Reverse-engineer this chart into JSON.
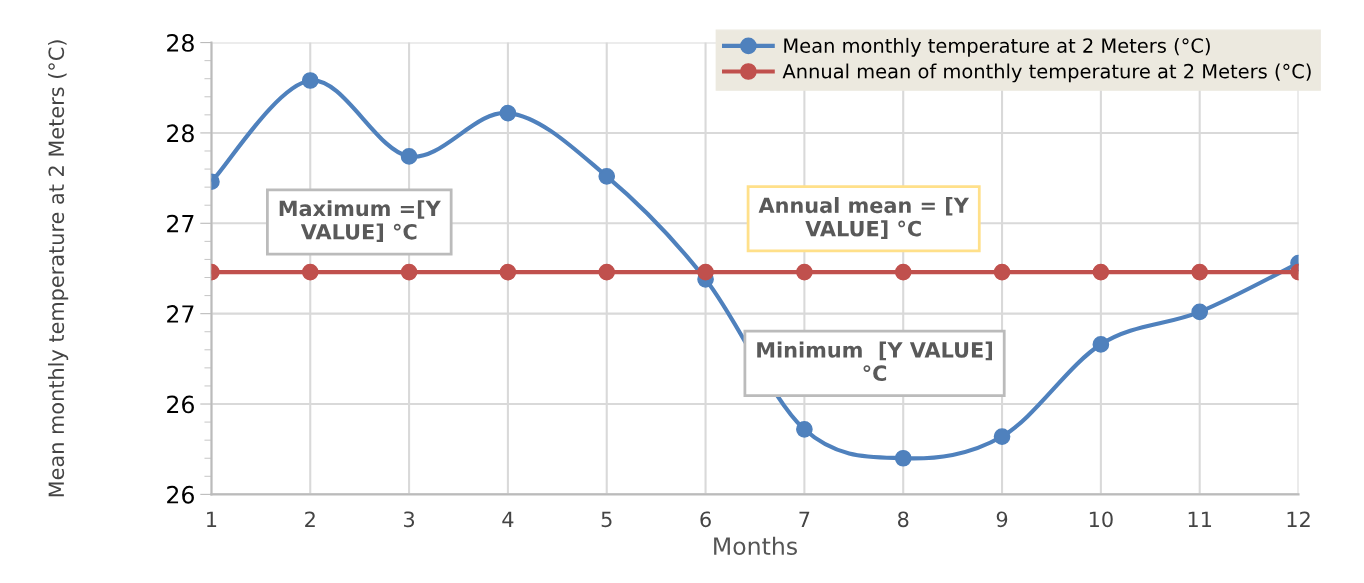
{
  "chart_data": {
    "type": "line",
    "xlabel": "Months",
    "ylabel": "Mean monthly temperature at 2 Meters (°C)",
    "x": [
      1,
      2,
      3,
      4,
      5,
      6,
      7,
      8,
      9,
      10,
      11,
      12
    ],
    "series": [
      {
        "name": "Mean monthly temperature at 2 Meters (°C)",
        "color": "#4f81bd",
        "values": [
          27.73,
          28.29,
          27.87,
          28.11,
          27.76,
          27.19,
          26.36,
          26.2,
          26.32,
          26.83,
          27.01,
          27.28
        ]
      },
      {
        "name": "Annual mean of monthly temperature at 2 Meters (°C)",
        "color": "#c0504d",
        "values": [
          27.23,
          27.23,
          27.23,
          27.23,
          27.23,
          27.23,
          27.23,
          27.23,
          27.23,
          27.23,
          27.23,
          27.23
        ]
      }
    ],
    "xlim": [
      1,
      12
    ],
    "xticks": [
      1,
      2,
      3,
      4,
      5,
      6,
      7,
      8,
      9,
      10,
      11,
      12
    ],
    "ylim": [
      26,
      28.5
    ],
    "yticks": [
      {
        "value": 26,
        "label": "26"
      },
      {
        "value": 26.5,
        "label": "26"
      },
      {
        "value": 27,
        "label": "27"
      },
      {
        "value": 27.5,
        "label": "27"
      },
      {
        "value": 28,
        "label": "28"
      },
      {
        "value": 28.5,
        "label": "28"
      }
    ],
    "annotations": [
      "Maximum =[Y VALUE] °C",
      "Annual mean = [Y VALUE] °C",
      "Minimum  [Y VALUE] °C"
    ],
    "grid": true,
    "legend": "top right",
    "marker": "circle",
    "line_style": "solid"
  }
}
